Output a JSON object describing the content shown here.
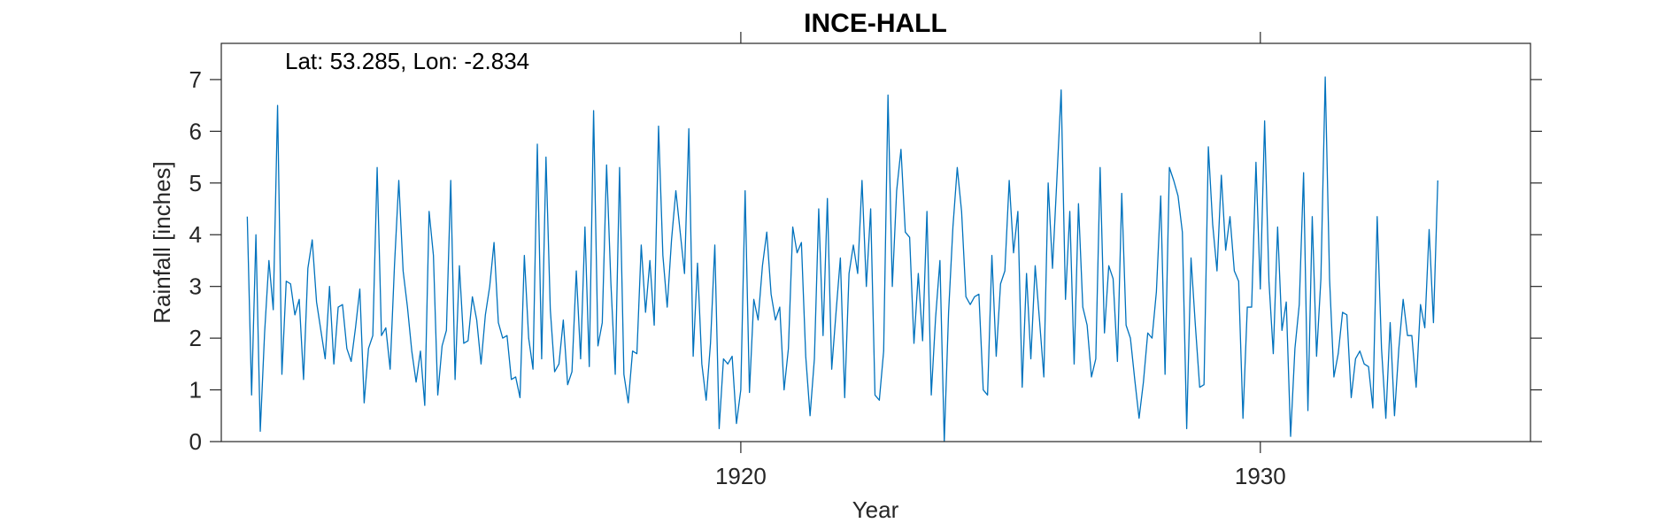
{
  "chart_data": {
    "type": "line",
    "title": "INCE-HALL",
    "xlabel": "Year",
    "ylabel": "Rainfall [inches]",
    "annotation": "Lat: 53.285, Lon: -2.834",
    "xlim": [
      1910.0,
      1935.2
    ],
    "ylim": [
      0,
      7.7
    ],
    "xticks": [
      1920,
      1930
    ],
    "yticks": [
      0,
      1,
      2,
      3,
      4,
      5,
      6,
      7
    ],
    "grid": false,
    "color": "#0072BD",
    "series": [
      {
        "x_start": 1910.5,
        "x_step": 0.08333,
        "values": [
          4.35,
          0.9,
          4.0,
          0.2,
          2.1,
          3.5,
          2.55,
          6.5,
          1.3,
          3.1,
          3.05,
          2.45,
          2.75,
          1.2,
          3.35,
          3.9,
          2.7,
          2.15,
          1.6,
          3.0,
          1.5,
          2.6,
          2.65,
          1.8,
          1.55,
          2.2,
          2.95,
          0.75,
          1.8,
          2.05,
          5.3,
          2.05,
          2.2,
          1.4,
          3.4,
          5.05,
          3.3,
          2.6,
          1.75,
          1.15,
          1.75,
          0.7,
          4.45,
          3.6,
          0.9,
          1.85,
          2.15,
          5.05,
          1.2,
          3.4,
          1.9,
          1.95,
          2.8,
          2.35,
          1.5,
          2.45,
          3.0,
          3.85,
          2.3,
          2.0,
          2.05,
          1.2,
          1.25,
          0.85,
          3.6,
          2.0,
          1.4,
          5.75,
          1.6,
          5.5,
          2.55,
          1.35,
          1.5,
          2.35,
          1.1,
          1.35,
          3.3,
          1.6,
          4.15,
          1.45,
          6.4,
          1.85,
          2.3,
          5.35,
          3.05,
          1.3,
          5.3,
          1.3,
          0.75,
          1.75,
          1.7,
          3.8,
          2.5,
          3.5,
          2.25,
          6.1,
          3.6,
          2.6,
          3.9,
          4.85,
          4.05,
          3.25,
          6.05,
          1.65,
          3.45,
          1.5,
          0.8,
          1.9,
          3.8,
          0.25,
          1.6,
          1.5,
          1.65,
          0.35,
          1.0,
          4.85,
          0.95,
          2.75,
          2.35,
          3.4,
          4.05,
          2.85,
          2.35,
          2.6,
          1.0,
          1.8,
          4.15,
          3.65,
          3.85,
          1.65,
          0.5,
          1.6,
          4.5,
          2.05,
          4.7,
          1.4,
          2.5,
          3.55,
          0.85,
          3.25,
          3.8,
          3.25,
          5.05,
          3.0,
          4.5,
          0.9,
          0.8,
          1.75,
          6.7,
          3.0,
          4.85,
          5.65,
          4.05,
          3.95,
          1.9,
          3.25,
          1.95,
          4.45,
          0.9,
          2.4,
          3.5,
          0.0,
          2.5,
          4.15,
          5.3,
          4.45,
          2.8,
          2.65,
          2.8,
          2.85,
          1.0,
          0.9,
          3.6,
          1.65,
          3.05,
          3.3,
          5.05,
          3.65,
          4.45,
          1.05,
          3.25,
          1.6,
          3.4,
          2.35,
          1.25,
          5.0,
          3.35,
          5.05,
          6.8,
          2.75,
          4.45,
          1.5,
          4.6,
          2.6,
          2.25,
          1.25,
          1.6,
          5.3,
          2.1,
          3.4,
          3.15,
          1.55,
          4.8,
          2.25,
          2.0,
          1.2,
          0.45,
          1.15,
          2.1,
          2.0,
          2.9,
          4.75,
          1.3,
          5.3,
          5.05,
          4.75,
          4.05,
          0.25,
          3.55,
          2.25,
          1.05,
          1.1,
          5.7,
          4.2,
          3.3,
          5.15,
          3.7,
          4.35,
          3.3,
          3.1,
          0.45,
          2.6,
          2.6,
          5.4,
          2.95,
          6.2,
          3.1,
          1.7,
          4.15,
          2.15,
          2.7,
          0.1,
          1.8,
          2.65,
          5.2,
          0.6,
          4.35,
          1.65,
          3.15,
          7.05,
          3.15,
          1.25,
          1.7,
          2.5,
          2.45,
          0.85,
          1.6,
          1.75,
          1.5,
          1.45,
          0.65,
          4.35,
          1.8,
          0.45,
          2.3,
          0.5,
          1.8,
          2.75,
          2.05,
          2.05,
          1.05,
          2.65,
          2.2,
          4.1,
          2.3,
          5.05
        ]
      }
    ]
  }
}
